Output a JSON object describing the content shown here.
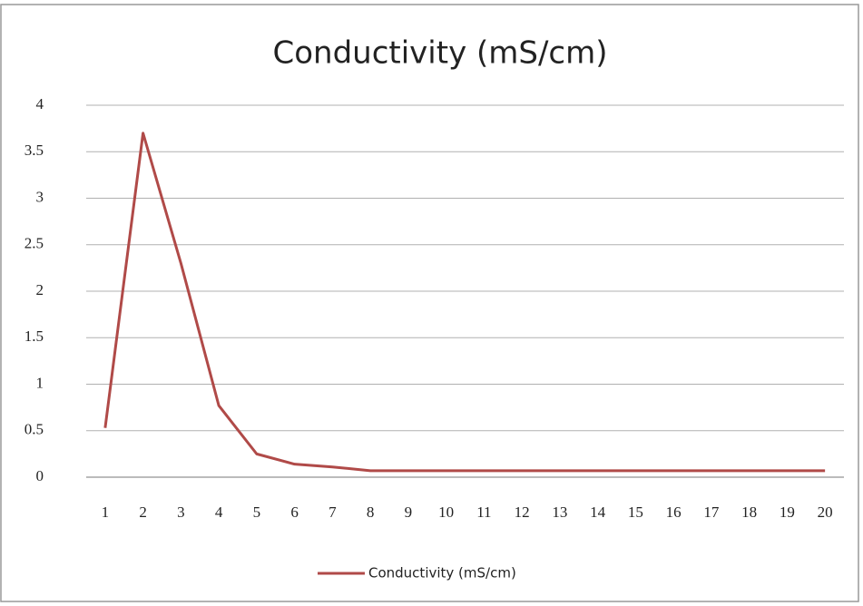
{
  "chart_data": {
    "type": "line",
    "title": "Conductivity (mS/cm)",
    "categories": [
      "1",
      "2",
      "3",
      "4",
      "5",
      "6",
      "7",
      "8",
      "9",
      "10",
      "11",
      "12",
      "13",
      "14",
      "15",
      "16",
      "17",
      "18",
      "19",
      "20"
    ],
    "series": [
      {
        "name": "Conductivity (mS/cm)",
        "color": "#b04a48",
        "values": [
          0.53,
          3.7,
          2.3,
          0.77,
          0.25,
          0.14,
          0.11,
          0.07,
          0.07,
          0.07,
          0.07,
          0.07,
          0.07,
          0.07,
          0.07,
          0.07,
          0.07,
          0.07,
          0.07,
          0.07
        ]
      }
    ],
    "ylim": [
      0,
      4
    ],
    "yticks": [
      0,
      0.5,
      1,
      1.5,
      2,
      2.5,
      3,
      3.5,
      4
    ],
    "grid": true,
    "legend": "bottom"
  }
}
